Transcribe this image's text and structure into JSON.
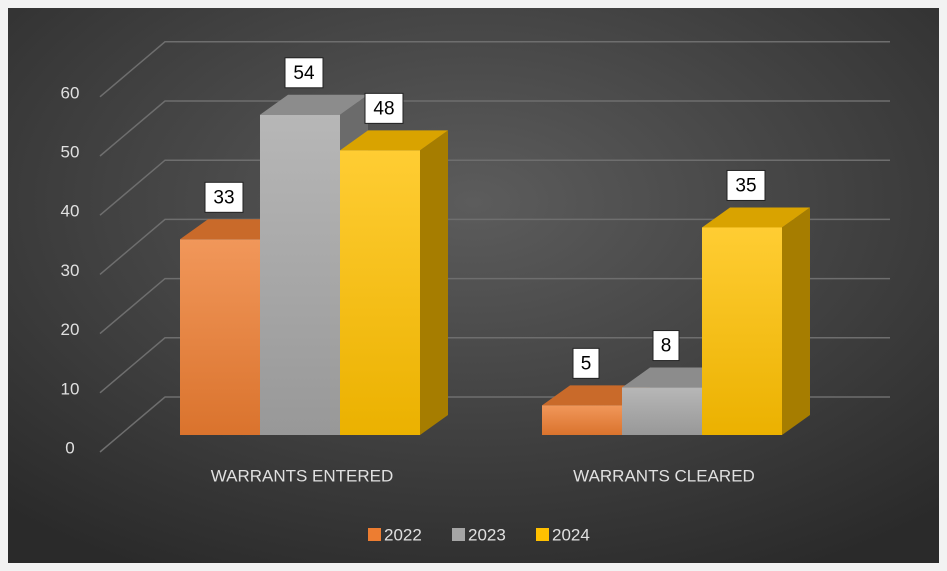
{
  "chart_data": {
    "type": "bar3d",
    "categories": [
      "WARRANTS ENTERED",
      "WARRANTS CLEARED"
    ],
    "series": [
      {
        "name": "2022",
        "color": "#ed7d31",
        "values": [
          33,
          5
        ]
      },
      {
        "name": "2023",
        "color": "#a5a5a5",
        "values": [
          54,
          8
        ]
      },
      {
        "name": "2024",
        "color": "#ffc000",
        "values": [
          48,
          35
        ]
      }
    ],
    "ylim": [
      0,
      60
    ],
    "yticks": [
      0,
      10,
      20,
      30,
      40,
      50,
      60
    ],
    "grid": true,
    "legend": "bottom",
    "data_labels": true
  }
}
